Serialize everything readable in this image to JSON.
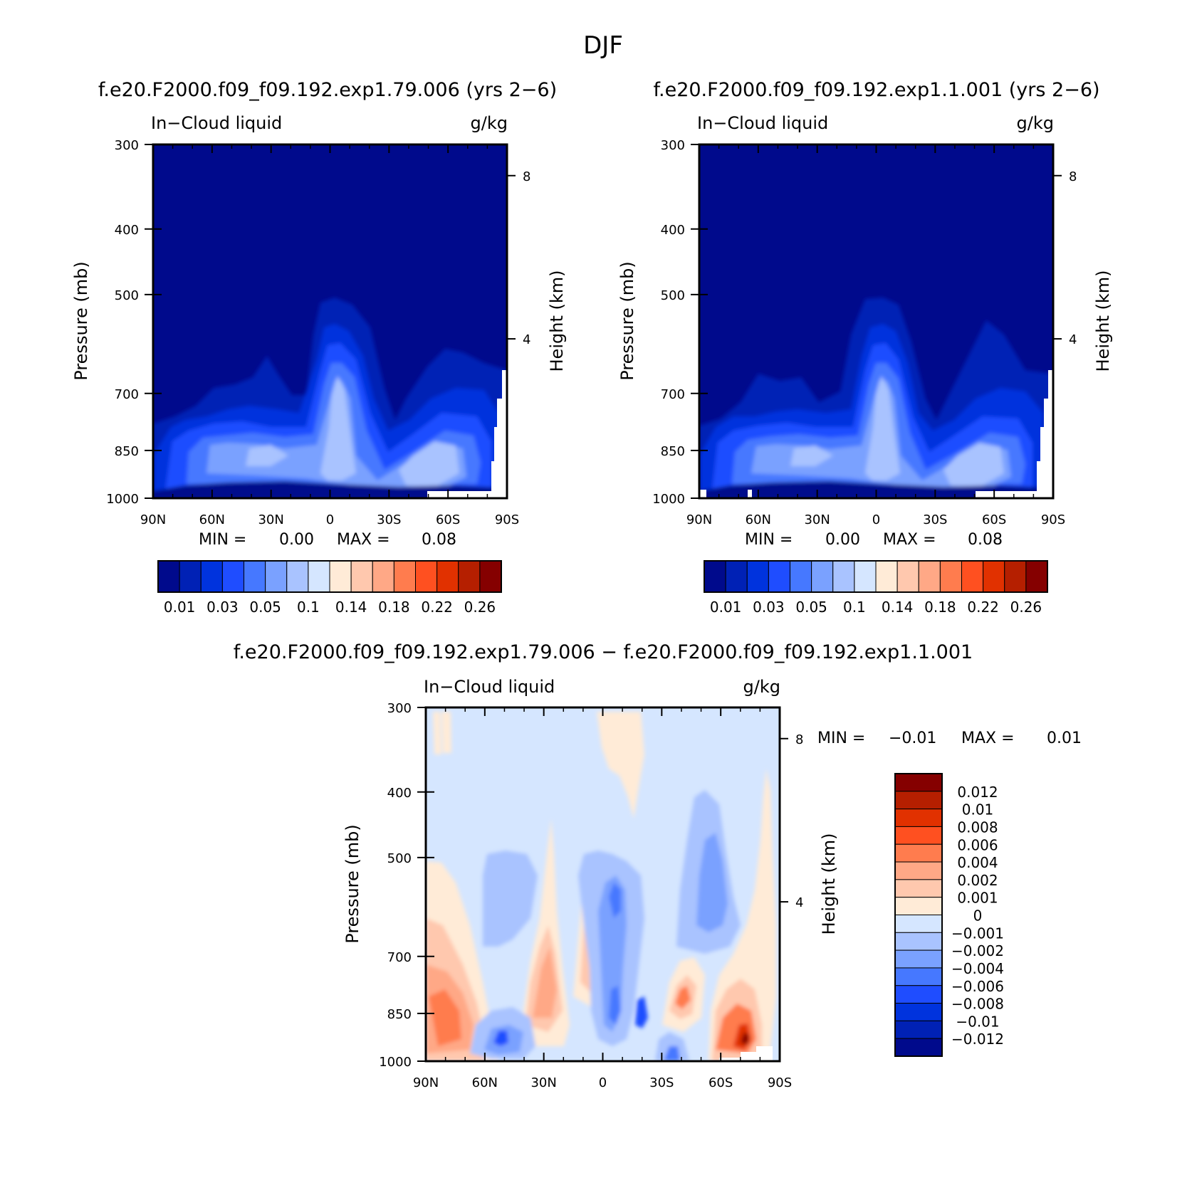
{
  "main_title": "DJF",
  "chart_data": [
    {
      "type": "heatmap",
      "title": "f.e20.F2000.f09_f09.192.exp1.79.006 (yrs 2−6)",
      "left_label": "In−Cloud liquid",
      "units": "g/kg",
      "ylabel": "Pressure (mb)",
      "y2label": "Height (km)",
      "x_ticks": [
        "90N",
        "60N",
        "30N",
        "0",
        "30S",
        "60S",
        "90S"
      ],
      "y_ticks": [
        "300",
        "400",
        "500",
        "700",
        "850",
        "1000"
      ],
      "y2_ticks": [
        "8",
        "4"
      ],
      "min_label": "MIN =",
      "min_value": "0.00",
      "max_label": "MAX =",
      "max_value": "0.08",
      "colorbar_labels": [
        "0.01",
        "0.03",
        "0.05",
        "0.1",
        "0.14",
        "0.18",
        "0.22",
        "0.26"
      ],
      "colorbar_colors": [
        "#000A8C",
        "#0021B5",
        "#0033DD",
        "#1F4DFF",
        "#4678FF",
        "#7AA1FF",
        "#A9C3FF",
        "#D5E6FF",
        "#FFEBD7",
        "#FFC8AE",
        "#FFA886",
        "#FF7C4E",
        "#FF5020",
        "#E13100",
        "#B51F00",
        "#850000"
      ]
    },
    {
      "type": "heatmap",
      "title": "f.e20.F2000.f09_f09.192.exp1.1.001 (yrs 2−6)",
      "left_label": "In−Cloud liquid",
      "units": "g/kg",
      "ylabel": "Pressure (mb)",
      "y2label": "Height (km)",
      "x_ticks": [
        "90N",
        "60N",
        "30N",
        "0",
        "30S",
        "60S",
        "90S"
      ],
      "y_ticks": [
        "300",
        "400",
        "500",
        "700",
        "850",
        "1000"
      ],
      "y2_ticks": [
        "8",
        "4"
      ],
      "min_label": "MIN =",
      "min_value": "0.00",
      "max_label": "MAX =",
      "max_value": "0.08",
      "colorbar_labels": [
        "0.01",
        "0.03",
        "0.05",
        "0.1",
        "0.14",
        "0.18",
        "0.22",
        "0.26"
      ]
    },
    {
      "type": "heatmap",
      "title": "f.e20.F2000.f09_f09.192.exp1.79.006 − f.e20.F2000.f09_f09.192.exp1.1.001",
      "left_label": "In−Cloud liquid",
      "units": "g/kg",
      "ylabel": "Pressure (mb)",
      "y2label": "Height (km)",
      "x_ticks": [
        "90N",
        "60N",
        "30N",
        "0",
        "30S",
        "60S",
        "90S"
      ],
      "y_ticks": [
        "300",
        "400",
        "500",
        "700",
        "850",
        "1000"
      ],
      "y2_ticks": [
        "8",
        "4"
      ],
      "min_label": "MIN =",
      "min_value": "−0.01",
      "max_label": "MAX =",
      "max_value": "0.01",
      "colorbar_labels": [
        "0.012",
        "0.01",
        "0.008",
        "0.006",
        "0.004",
        "0.002",
        "0.001",
        "0",
        "−0.001",
        "−0.002",
        "−0.004",
        "−0.006",
        "−0.008",
        "−0.01",
        "−0.012"
      ],
      "colorbar_colors": [
        "#850000",
        "#B51F00",
        "#E13100",
        "#FF5020",
        "#FF7C4E",
        "#FFA886",
        "#FFC8AE",
        "#FFEBD7",
        "#D5E6FF",
        "#A9C3FF",
        "#7AA1FF",
        "#4678FF",
        "#1F4DFF",
        "#0033DD",
        "#0021B5",
        "#000A8C"
      ]
    }
  ]
}
